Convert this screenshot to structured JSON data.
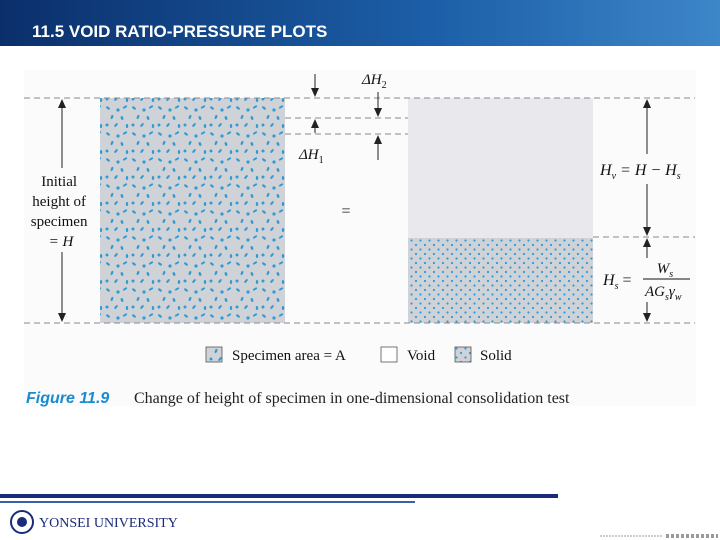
{
  "header": {
    "title": "11.5 VOID RATIO-PRESSURE PLOTS"
  },
  "figure": {
    "delta_h2": {
      "base": "ΔH",
      "sub": "2"
    },
    "delta_h1": {
      "base": "ΔH",
      "sub": "1"
    },
    "initial_height": [
      "Initial",
      "height of",
      "specimen",
      "= H"
    ],
    "equals": "=",
    "hv": {
      "lhs": "H",
      "lhs_sub": "v",
      "rhs": " = H − H",
      "rhs_sub": "s"
    },
    "hs": {
      "lhs": "H",
      "lhs_sub": "s",
      "eq": "=",
      "num": "W",
      "num_sub": "s",
      "den": "AG",
      "den_sub1": "s",
      "den_mid": "γ",
      "den_sub2": "w"
    },
    "legend": [
      "Specimen area = A",
      "Void",
      "Solid"
    ]
  },
  "caption": {
    "label": "Figure 11.9",
    "text": "Change of height of specimen in one-dimensional consolidation test"
  },
  "footer": {
    "logo": "YONSEI UNIVERSITY"
  }
}
